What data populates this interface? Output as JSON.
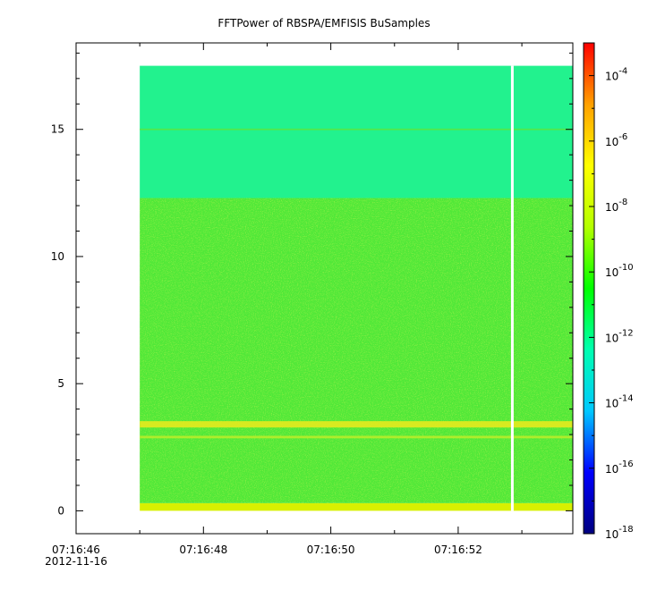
{
  "chart_data": {
    "type": "heatmap",
    "title": "FFTPower of RBSPA/EMFISIS  BuSamples",
    "xlabel": "",
    "ylabel": "",
    "x_axis": {
      "type": "time",
      "range": [
        "07:16:46",
        "07:16:53.8"
      ],
      "major_ticks": [
        {
          "time": "07:16:46",
          "label": "07:16:46",
          "sublabel": "2012-11-16"
        },
        {
          "time": "07:16:48",
          "label": "07:16:48"
        },
        {
          "time": "07:16:50",
          "label": "07:16:50"
        },
        {
          "time": "07:16:52",
          "label": "07:16:52"
        }
      ],
      "minor_tick_seconds": 1
    },
    "y_axis": {
      "range": [
        -0.9,
        18.4
      ],
      "ticks": [
        0,
        5,
        10,
        15
      ],
      "tick_labels": [
        "0",
        "5",
        "10",
        "15"
      ],
      "minor_step": 1
    },
    "data_extent": {
      "x_start": "07:16:47.0",
      "x_end": "07:16:53.8",
      "y_min": 0,
      "y_max": 17.5,
      "gap_at": "07:16:52.85"
    },
    "colorbar": {
      "scale": "log",
      "range": [
        1e-18,
        0.001
      ],
      "ticks": [
        {
          "base": "10",
          "exp": "-4",
          "value": 0.0001
        },
        {
          "base": "10",
          "exp": "-6",
          "value": 1e-06
        },
        {
          "base": "10",
          "exp": "-8",
          "value": 1e-08
        },
        {
          "base": "10",
          "exp": "-10",
          "value": 1e-10
        },
        {
          "base": "10",
          "exp": "-12",
          "value": 1e-12
        },
        {
          "base": "10",
          "exp": "-14",
          "value": 1e-14
        },
        {
          "base": "10",
          "exp": "-16",
          "value": 1e-16
        },
        {
          "base": "10",
          "exp": "-18",
          "value": 1e-18
        }
      ],
      "colormap": [
        "#00007f",
        "#0000ff",
        "#00c8ff",
        "#00ffb0",
        "#00ff00",
        "#b4ff00",
        "#ffff00",
        "#ffa000",
        "#ff0000"
      ]
    },
    "spectral_regions": [
      {
        "y_from": 0,
        "y_to": 0.3,
        "level": 1e-09,
        "color": "#d8f000"
      },
      {
        "y_from": 0.3,
        "y_to": 12.3,
        "level": 1e-11,
        "color": "#50e838"
      },
      {
        "y_from": 12.3,
        "y_to": 17.5,
        "level": 1e-13,
        "color": "#22f28e"
      }
    ],
    "bands": [
      {
        "y": 3.4,
        "width": 0.25,
        "level": 1e-09,
        "color": "#e6ea1e"
      },
      {
        "y": 2.9,
        "width": 0.1,
        "level": 1e-10,
        "color": "#b8ec2a"
      },
      {
        "y": 15.0,
        "width": 0.06,
        "level": 1e-11,
        "color": "#5ae840"
      }
    ],
    "grid": false,
    "legend": "none"
  }
}
